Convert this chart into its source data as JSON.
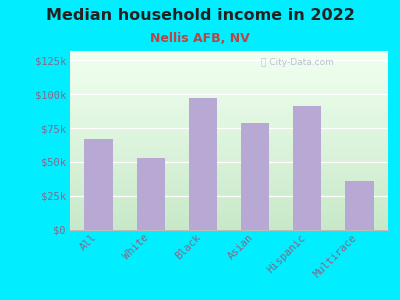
{
  "title": "Median household income in 2022",
  "subtitle": "Nellis AFB, NV",
  "categories": [
    "All",
    "White",
    "Black",
    "Asian",
    "Hispanic",
    "Multirace"
  ],
  "values": [
    67000,
    53000,
    97000,
    79000,
    91000,
    36000
  ],
  "bar_color": "#b8a8d4",
  "background_outer": "#00eeff",
  "title_color": "#222222",
  "subtitle_color": "#bb4444",
  "tick_label_color": "#886688",
  "ytick_labels": [
    "$0",
    "$25k",
    "$50k",
    "$75k",
    "$100k",
    "$125k"
  ],
  "ytick_values": [
    0,
    25000,
    50000,
    75000,
    100000,
    125000
  ],
  "ylim": [
    0,
    132000
  ],
  "watermark": "City-Data.com",
  "title_fontsize": 11.5,
  "subtitle_fontsize": 9,
  "tick_fontsize": 7.5
}
